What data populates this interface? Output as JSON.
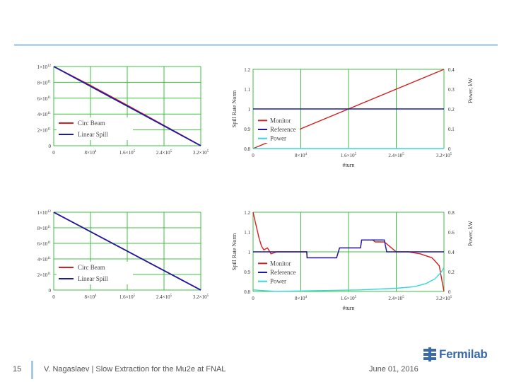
{
  "slide": {
    "page_number": "15",
    "footer_title": "V. Nagaslaev | Slow Extraction for the Mu2e at FNAL",
    "date": "June 01, 2016",
    "logo_text": "Fermilab",
    "rule_color": "#b6d5ea"
  },
  "chart_data": [
    {
      "type": "line",
      "x": [
        0,
        80000,
        160000,
        240000,
        320000
      ],
      "xtick_labels": [
        "0",
        "8×10^4",
        "1.6×10^5",
        "2.4×10^5",
        "3.2×10^5"
      ],
      "ytick_labels": [
        "0",
        "2×10^11",
        "4×10^11",
        "6×10^11",
        "8×10^11",
        "1×10^12"
      ],
      "ylim": [
        0,
        1000000000000
      ],
      "xlim": [
        0,
        320000
      ],
      "grid": true,
      "legend_position": "bottom-left",
      "series": [
        {
          "name": "Circ Beam",
          "color": "#d42020",
          "values": [
            1000000000000,
            760000000000,
            510000000000,
            255000000000,
            0
          ]
        },
        {
          "name": "Linear Spill",
          "color": "#1a1aa8",
          "values": [
            1000000000000,
            750000000000,
            500000000000,
            250000000000,
            0
          ]
        }
      ]
    },
    {
      "type": "line",
      "x": [
        0,
        80000,
        160000,
        240000,
        320000
      ],
      "xtick_labels": [
        "0",
        "8×10^4",
        "1.6×10^5",
        "2.4×10^5",
        "3.2×10^5"
      ],
      "ytick_labels": [
        "0",
        "2×10^11",
        "4×10^11",
        "6×10^11",
        "8×10^11",
        "1×10^12"
      ],
      "ylim": [
        0,
        1000000000000
      ],
      "xlim": [
        0,
        320000
      ],
      "grid": true,
      "legend_position": "bottom-left",
      "series": [
        {
          "name": "Circ Beam",
          "color": "#d42020",
          "values": [
            1000000000000,
            750000000000,
            500000000000,
            250000000000,
            0
          ]
        },
        {
          "name": "Linear Spill",
          "color": "#1a1aa8",
          "values": [
            1000000000000,
            750000000000,
            500000000000,
            250000000000,
            0
          ]
        }
      ]
    },
    {
      "type": "line",
      "xlabel": "#turn",
      "ylabel": "Spill Rate Norm",
      "ylabel_right": "Power, kW",
      "xtick_labels": [
        "0",
        "8×10^4",
        "1.6×10^5",
        "2.4×10^5",
        "3.2×10^5"
      ],
      "ytick_labels": [
        "0.8",
        "0.9",
        "1",
        "1.1",
        "1.2"
      ],
      "ytick_right_labels": [
        "0",
        "0.1",
        "0.2",
        "0.3",
        "0.4"
      ],
      "xlim": [
        0,
        320000
      ],
      "ylim": [
        0.8,
        1.2
      ],
      "ylim_right": [
        0,
        0.5
      ],
      "grid": true,
      "legend_position": "bottom-left",
      "series": [
        {
          "name": "Monitor",
          "color": "#d42020",
          "axis": "left",
          "x": [
            0,
            320000
          ],
          "values": [
            0.8,
            1.2
          ]
        },
        {
          "name": "Reference",
          "color": "#1a1aa8",
          "axis": "left",
          "x": [
            0,
            320000
          ],
          "values": [
            1.0,
            1.0
          ]
        },
        {
          "name": "Power",
          "color": "#38d6d6",
          "axis": "right",
          "x": [
            0,
            320000
          ],
          "values": [
            0.0,
            0.0
          ]
        }
      ]
    },
    {
      "type": "line",
      "xlabel": "#turn",
      "ylabel": "Spill Rate Norm",
      "ylabel_right": "Power, kW",
      "xtick_labels": [
        "0",
        "8×10^4",
        "1.6×10^5",
        "2.4×10^5",
        "3.2×10^5"
      ],
      "ytick_labels": [
        "0.8",
        "0.9",
        "1",
        "1.1",
        "1.2"
      ],
      "ytick_right_labels": [
        "0",
        "0.2",
        "0.4",
        "0.6",
        "0.8"
      ],
      "xlim": [
        0,
        320000
      ],
      "ylim": [
        0.8,
        1.2
      ],
      "ylim_right": [
        0,
        1.0
      ],
      "grid": true,
      "legend_position": "bottom-left",
      "series": [
        {
          "name": "Monitor",
          "color": "#d42020",
          "axis": "left",
          "x": [
            0,
            3000,
            6000,
            10000,
            14000,
            18000,
            24000,
            30000,
            40000,
            50000,
            60000,
            90000,
            90500,
            94000,
            118000,
            140000,
            145000,
            180000,
            182000,
            200000,
            205000,
            220000,
            240000,
            260000,
            280000,
            300000,
            312000,
            320000
          ],
          "values": [
            1.2,
            1.16,
            1.12,
            1.07,
            1.03,
            1.01,
            1.02,
            0.99,
            1.0,
            1.0,
            1.0,
            1.0,
            0.97,
            0.97,
            0.97,
            0.97,
            1.02,
            1.02,
            1.06,
            1.06,
            1.05,
            1.05,
            1.0,
            1.0,
            0.99,
            0.97,
            0.93,
            0.8
          ]
        },
        {
          "name": "Reference",
          "color": "#1a1aa8",
          "axis": "left",
          "x": [
            0,
            90000,
            90500,
            140000,
            145000,
            180000,
            182000,
            220000,
            224000,
            320000
          ],
          "values": [
            1.0,
            1.0,
            0.97,
            0.97,
            1.02,
            1.02,
            1.06,
            1.06,
            1.0,
            1.0
          ]
        },
        {
          "name": "Power",
          "color": "#38d6d6",
          "axis": "right",
          "x": [
            0,
            20000,
            40000,
            100000,
            180000,
            240000,
            270000,
            290000,
            305000,
            315000,
            320000
          ],
          "values": [
            0.02,
            0.01,
            0.0,
            0.01,
            0.02,
            0.04,
            0.06,
            0.1,
            0.16,
            0.24,
            0.3
          ]
        }
      ]
    }
  ]
}
